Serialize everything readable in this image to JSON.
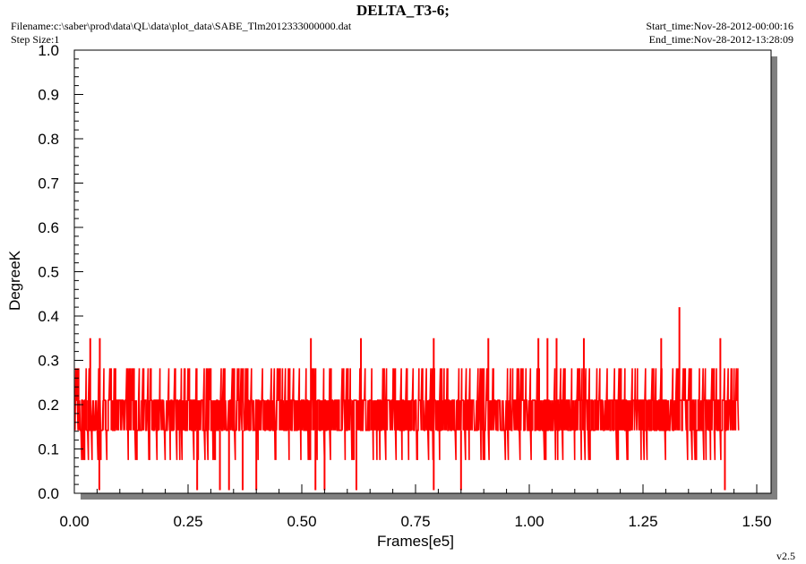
{
  "header": {
    "title": "DELTA_T3-6;",
    "filename": "Filename:c:\\saber\\prod\\data\\QL\\data\\plot_data\\SABE_Tlm2012333000000.dat",
    "step_size": "Step Size:1",
    "start_time": "Start_time:Nov-28-2012-00:00:16",
    "end_time": "End_time:Nov-28-2012-13:28:09",
    "version": "v2.5"
  },
  "colors": {
    "series": "#ff0000",
    "shadow": "#808080",
    "background": "#ffffff",
    "axis": "#000000"
  },
  "chart_data": {
    "type": "line",
    "title": "DELTA_T3-6;",
    "xlabel": "Frames[e5]",
    "ylabel": "DegreeK",
    "xlim": [
      0.0,
      1.5
    ],
    "ylim": [
      0.0,
      1.0
    ],
    "xticks": [
      "0.00",
      "0.25",
      "0.50",
      "0.75",
      "1.00",
      "1.25",
      "1.50"
    ],
    "yticks": [
      "0.0",
      "0.1",
      "0.2",
      "0.3",
      "0.4",
      "0.5",
      "0.6",
      "0.7",
      "0.8",
      "0.9",
      "1.0"
    ],
    "grid": false,
    "series": [
      {
        "x_range": [
          0.0,
          1.46
        ],
        "quantized_levels": [
          0.007,
          0.075,
          0.142,
          0.21,
          0.282,
          0.35,
          0.42
        ],
        "dominant_band": [
          0.142,
          0.21
        ],
        "regular_max": 0.282,
        "spikes_high": [
          {
            "x": 0.035,
            "y": 0.35
          },
          {
            "x": 0.056,
            "y": 0.35
          },
          {
            "x": 0.52,
            "y": 0.35
          },
          {
            "x": 0.63,
            "y": 0.35
          },
          {
            "x": 0.79,
            "y": 0.35
          },
          {
            "x": 0.91,
            "y": 0.35
          },
          {
            "x": 1.02,
            "y": 0.35
          },
          {
            "x": 1.04,
            "y": 0.35
          },
          {
            "x": 1.06,
            "y": 0.35
          },
          {
            "x": 1.12,
            "y": 0.35
          },
          {
            "x": 1.29,
            "y": 0.35
          },
          {
            "x": 1.33,
            "y": 0.42
          },
          {
            "x": 1.42,
            "y": 0.35
          }
        ],
        "spikes_low": [
          {
            "x": 0.055,
            "y": 0.007
          },
          {
            "x": 0.27,
            "y": 0.007
          },
          {
            "x": 0.32,
            "y": 0.007
          },
          {
            "x": 0.34,
            "y": 0.007
          },
          {
            "x": 0.37,
            "y": 0.007
          },
          {
            "x": 0.4,
            "y": 0.007
          },
          {
            "x": 0.53,
            "y": 0.007
          },
          {
            "x": 0.55,
            "y": 0.007
          },
          {
            "x": 0.62,
            "y": 0.007
          },
          {
            "x": 0.79,
            "y": 0.007
          },
          {
            "x": 0.85,
            "y": 0.007
          },
          {
            "x": 1.43,
            "y": 0.007
          }
        ]
      }
    ]
  }
}
